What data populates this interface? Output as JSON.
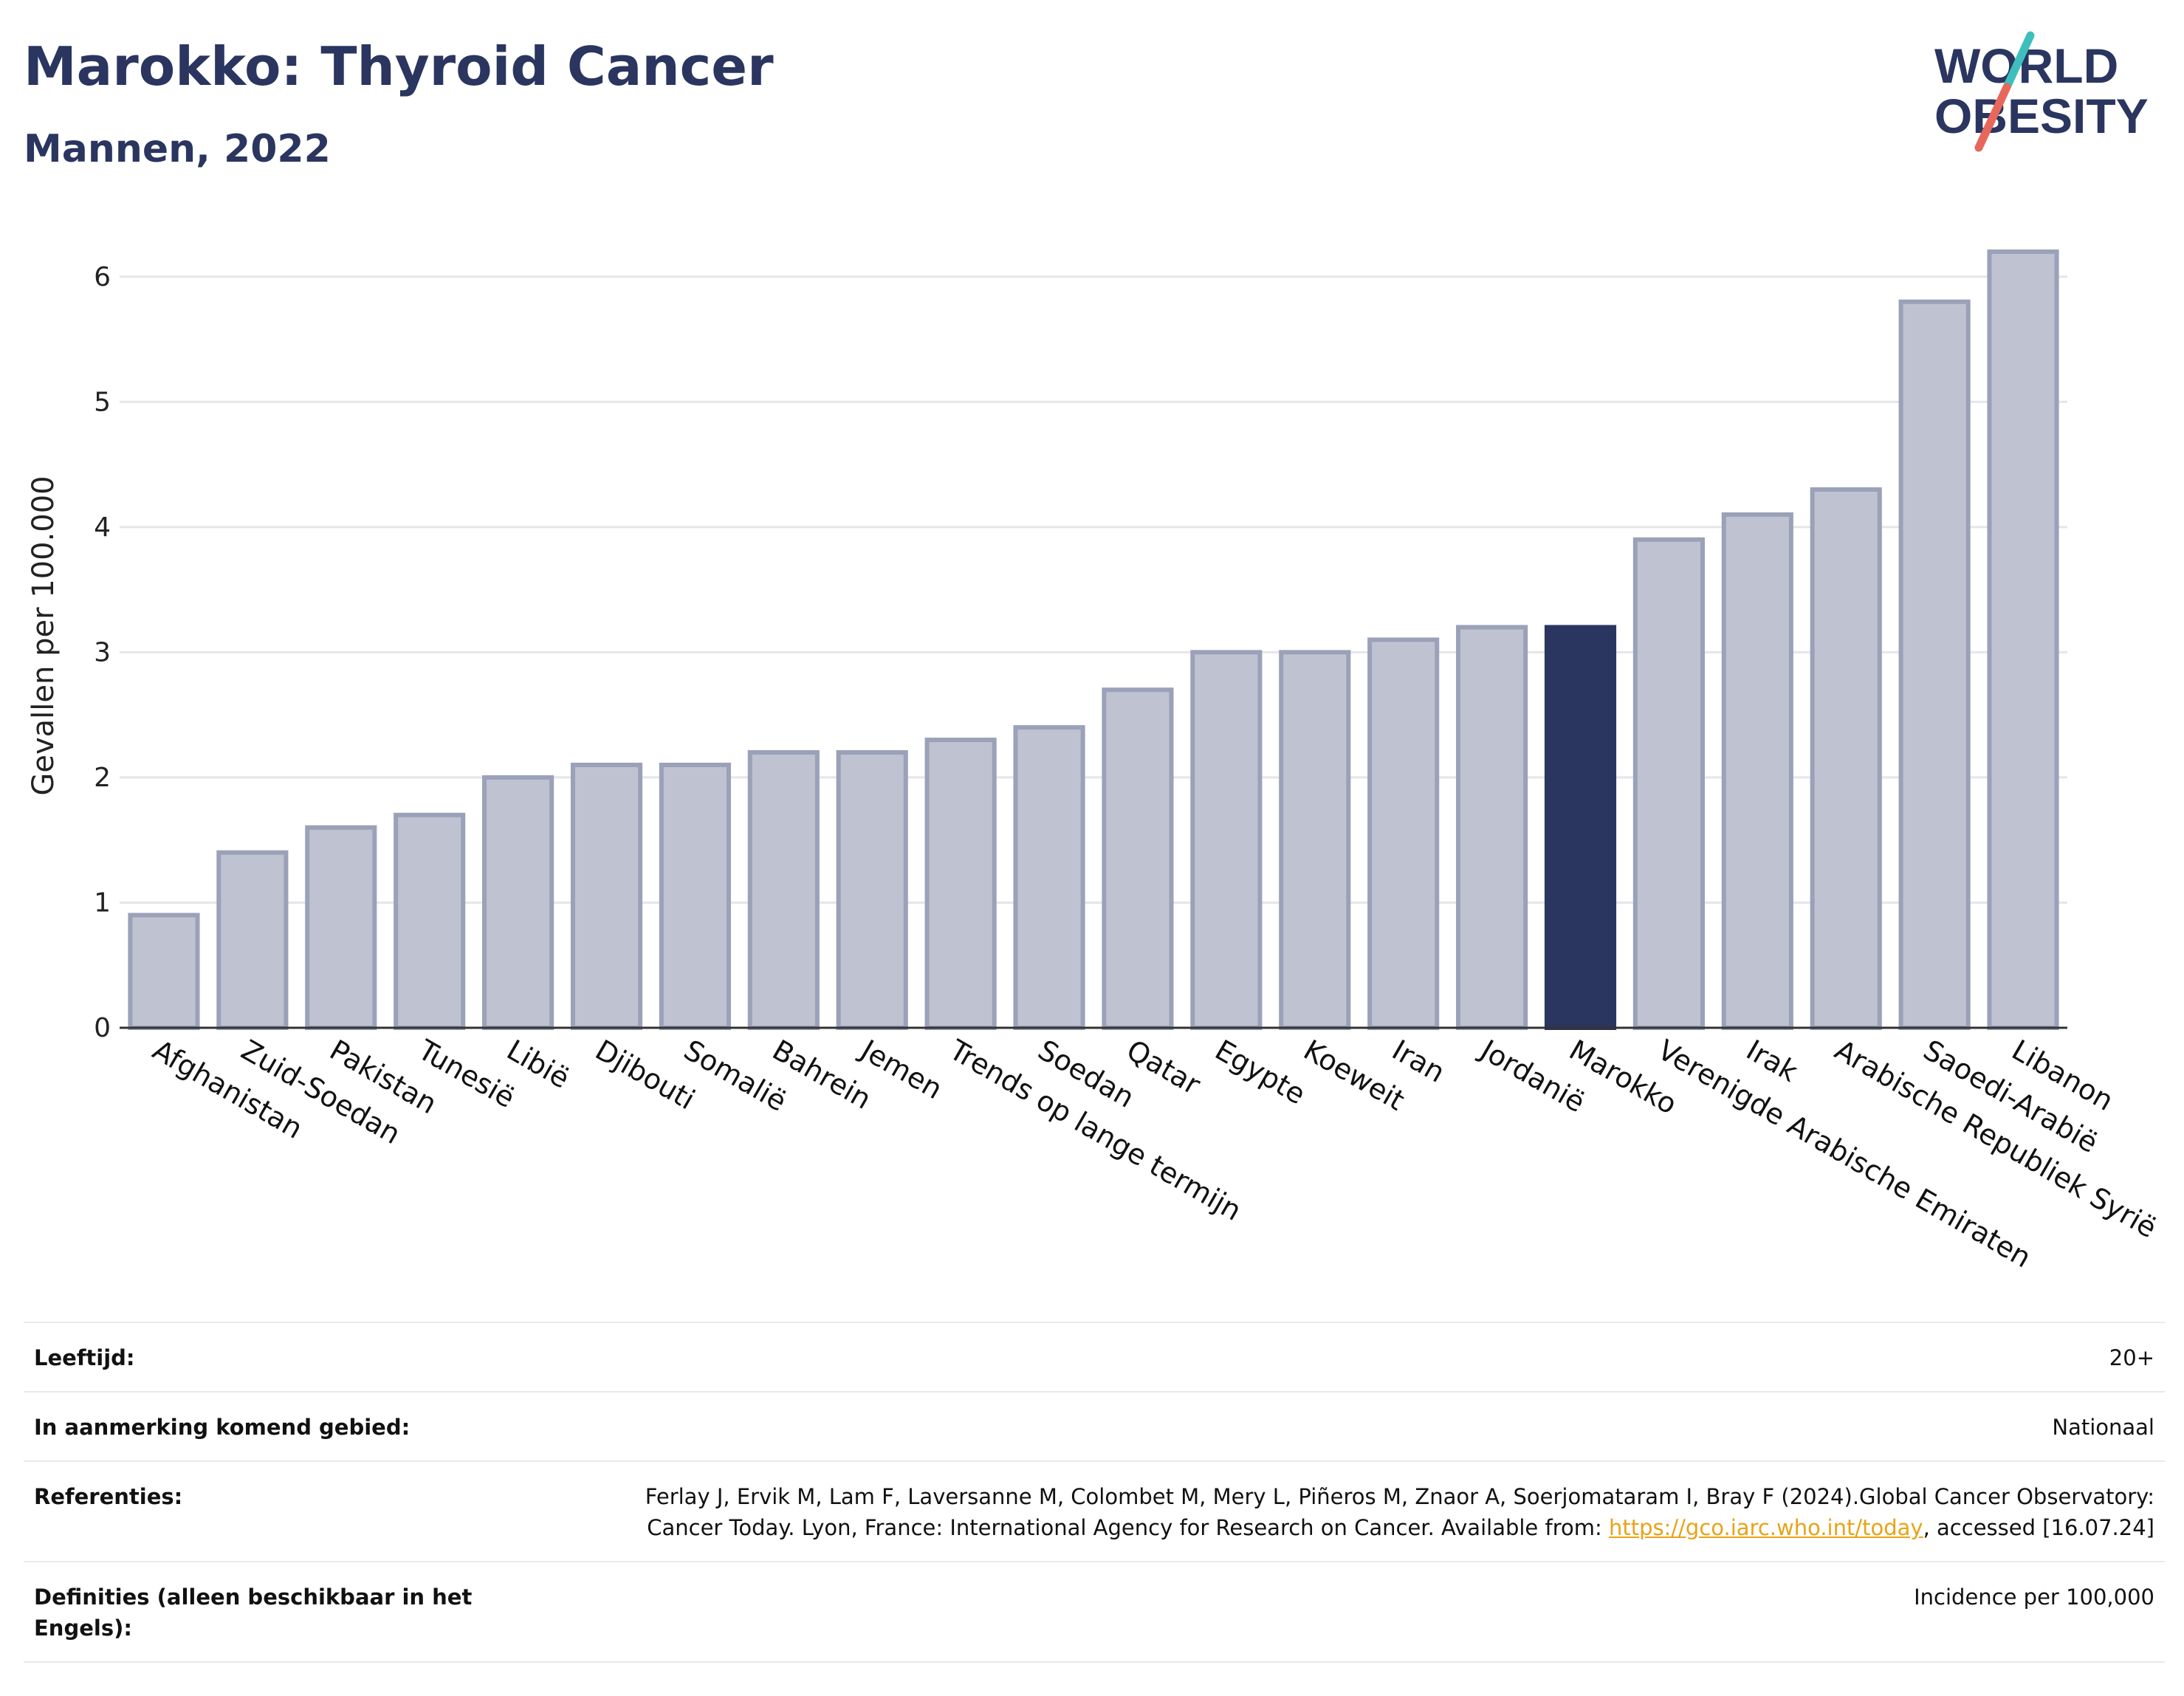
{
  "header": {
    "title": "Marokko: Thyroid Cancer",
    "subtitle": "Mannen, 2022"
  },
  "logo": {
    "line1": "WORLD",
    "line2": "OBESITY",
    "colors": {
      "text": "#2a3560",
      "slash_top": "#3ebfbd",
      "slash_bottom": "#e8675b"
    }
  },
  "colors": {
    "bar": "#bfc3d1",
    "bar_border": "#9aa1b8",
    "highlight": "#2a3560",
    "grid": "#e6e6ea",
    "axis": "#333333"
  },
  "chart_data": {
    "type": "bar",
    "title": "Marokko: Thyroid Cancer",
    "subtitle": "Mannen, 2022",
    "ylabel": "Gevallen per 100.000",
    "xlabel": "",
    "ylim": [
      0,
      6.5
    ],
    "yticks": [
      0,
      1,
      2,
      3,
      4,
      5,
      6
    ],
    "grid": true,
    "highlight": "Marokko",
    "categories": [
      "Afghanistan",
      "Zuid-Soedan",
      "Pakistan",
      "Tunesië",
      "Libië",
      "Djibouti",
      "Somalië",
      "Bahrein",
      "Jemen",
      "Trends op lange termijn",
      "Soedan",
      "Qatar",
      "Egypte",
      "Koeweit",
      "Iran",
      "Jordanië",
      "Marokko",
      "Verenigde Arabische Emiraten",
      "Irak",
      "Arabische Republiek Syrië",
      "Saoedi-Arabië",
      "Libanon"
    ],
    "values": [
      0.9,
      1.4,
      1.6,
      1.7,
      2.0,
      2.1,
      2.1,
      2.2,
      2.2,
      2.3,
      2.4,
      2.7,
      3.0,
      3.0,
      3.1,
      3.2,
      3.2,
      3.9,
      4.1,
      4.3,
      5.8,
      6.2
    ]
  },
  "info": [
    {
      "label": "Leeftijd:",
      "value": "20+"
    },
    {
      "label": "In aanmerking komend gebied:",
      "value": "Nationaal"
    },
    {
      "label": "Referenties:",
      "value_pre": "Ferlay J, Ervik M, Lam F, Laversanne M, Colombet M, Mery L, Piñeros M, Znaor A, Soerjomataram I, Bray F (2024).Global Cancer Observatory: Cancer Today. Lyon, France: International Agency for Research on Cancer. Available from: ",
      "link": "https://gco.iarc.who.int/today",
      "value_post": ", accessed [16.07.24]"
    },
    {
      "label": "Definities (alleen beschikbaar in het Engels):",
      "value": "Incidence per 100,000"
    }
  ]
}
